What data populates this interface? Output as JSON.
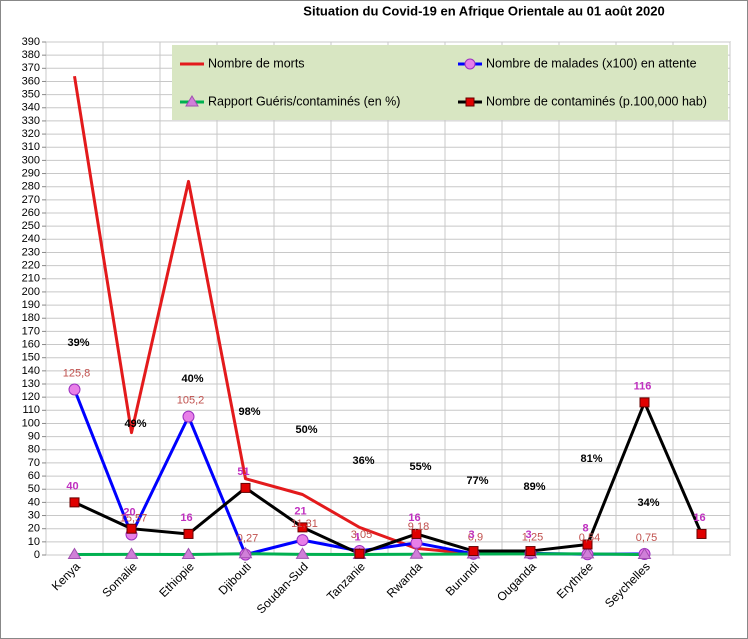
{
  "chart_data": {
    "type": "line",
    "title": "Situation du Covid-19 en Afrique Orientale au 01 août 2020",
    "categories": [
      "Kenya",
      "Somalie",
      "Ethiopie",
      "Djibouti",
      "Soudan-Sud",
      "Tanzanie",
      "Rwanda",
      "Burundi",
      "Ouganda",
      "Erythrée",
      "Seychelles",
      null
    ],
    "ylim": [
      0,
      390
    ],
    "yticks": [
      0,
      10,
      20,
      30,
      40,
      50,
      60,
      70,
      80,
      90,
      100,
      110,
      120,
      130,
      140,
      150,
      160,
      170,
      180,
      190,
      200,
      210,
      220,
      230,
      240,
      250,
      260,
      270,
      280,
      290,
      300,
      310,
      320,
      330,
      340,
      350,
      360,
      370,
      380,
      390
    ],
    "grid": true,
    "series": [
      {
        "name": "Nombre de morts",
        "color": "#e31a1c",
        "marker": "none",
        "values": [
          364,
          93,
          284,
          58,
          46,
          21,
          5,
          1,
          null,
          null,
          null,
          null
        ]
      },
      {
        "name": "Nombre de malades (x100) en attente",
        "color": "#0000ff",
        "marker": "circle",
        "values": [
          125.8,
          15.57,
          105.2,
          0.27,
          11.31,
          3.05,
          9.18,
          0.9,
          1.25,
          0.54,
          0.75,
          null
        ],
        "value_labels": [
          "125,8",
          "15,57",
          "105,2",
          "0,27",
          "11,31",
          "3,05",
          "9,18",
          "0,9",
          "1,25",
          "0,54",
          "0,75",
          null
        ]
      },
      {
        "name": "Rapport Guéris/contaminés (en %)",
        "color": "#00b050",
        "marker": "triangle",
        "values": [
          0.39,
          0.49,
          0.4,
          0.98,
          0.5,
          0.36,
          0.55,
          0.77,
          0.89,
          0.81,
          0.34,
          null
        ],
        "value_labels": [
          "39%",
          "49%",
          "40%",
          "98%",
          "50%",
          "36%",
          "55%",
          "77%",
          "89%",
          "81%",
          "34%",
          null
        ]
      },
      {
        "name": "Nombre de contaminés (p.100,000 hab)",
        "color": "#000000",
        "marker": "square",
        "values": [
          40,
          20,
          16,
          51,
          21,
          1,
          16,
          3,
          3,
          8,
          116,
          16
        ]
      }
    ]
  }
}
